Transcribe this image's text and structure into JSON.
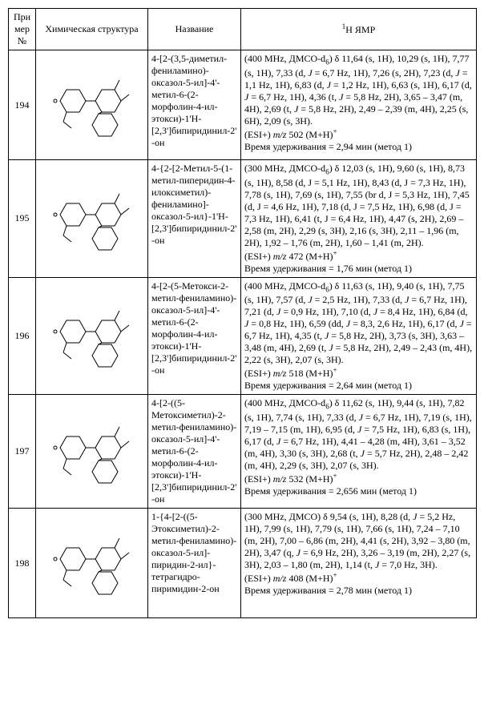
{
  "headers": {
    "col1": "При мер №",
    "col2": "Химическая структура",
    "col3": "Название",
    "col4_pre": "1",
    "col4_mid": "H ЯМР"
  },
  "rows": [
    {
      "num": "194",
      "name": "4-[2-(3,5-диметил-фениламино)-оксазол-5-ил]-4'-метил-6-(2-морфолин-4-ил-этокси)-1'H-[2,3']бипиридинил-2'-он",
      "nmr": "(400 MHz, ДМСО-d<sub>6</sub>) δ 11,64 (s, 1H), 10,29 (s, 1H), 7,77 (s, 1H), 7,33 (d, <i>J</i> = 6,7 Hz, 1H), 7,26 (s, 2H), 7,23 (d, <i>J</i> = 1,1 Hz, 1H), 6,83 (d, <i>J</i> = 1,2 Hz, 1H), 6,63 (s, 1H), 6,17 (d, <i>J</i> = 6,7 Hz, 1H), 4,36 (t, <i>J</i> = 5,8 Hz, 2H), 3,65 – 3,47 (m, 4H), 2,69 (t, <i>J</i> = 5,8 Hz, 2H), 2,49 – 2,39 (m, 4H), 2,25 (s, 6H), 2,09 (s, 3H).<br>(ESI+) <i>m/z</i> 502 (M+H)<sup>+</sup><br>Время удерживания = 2,94 мин (метод 1)"
    },
    {
      "num": "195",
      "name": "4-{2-[2-Метил-5-(1-метил-пиперидин-4-илоксиметил)-фениламино]-оксазол-5-ил}-1'H-[2,3']бипиридинил-2'-он",
      "nmr": "(300 MHz, ДМСО-d<sub>6</sub>) δ 12,03 (s, 1H), 9,60 (s, 1H), 8,73 (s, 1H), 8,58 (d, J = 5,1 Hz, 1H), 8,43 (d, J = 7,3 Hz, 1H), 7,78 (s, 1H), 7,69 (s, 1H), 7,55 (br d, J = 5,3 Hz, 1H), 7,45 (d, J = 4,6 Hz, 1H), 7,18 (d, J = 7,5 Hz, 1H), 6,98 (d, J = 7,3 Hz, 1H), 6,41 (t, J = 6,4 Hz, 1H), 4,47 (s, 2H), 2,69 – 2,58 (m, 2H), 2,29 (s, 3H), 2,16 (s, 3H), 2,11 – 1,96 (m, 2H), 1,92 – 1,76 (m, 2H), 1,60 – 1,41 (m, 2H).<br>(ESI+) <i>m/z</i> 472 (M+H)<sup>+</sup><br>Время удерживания = 1,76 мин (метод 1)"
    },
    {
      "num": "196",
      "name": "4-[2-(5-Метокси-2-метил-фениламино)-оксазол-5-ил]-4'-метил-6-(2-морфолин-4-ил-этокси)-1'H-[2,3']бипиридинил-2'-он",
      "nmr": "(400 MHz, ДМСО-d<sub>6</sub>) δ 11,63 (s, 1H), 9,40 (s, 1H), 7,75 (s, 1H), 7,57 (d, <i>J</i> = 2,5 Hz, 1H), 7,33 (d, <i>J</i> = 6,7 Hz, 1H), 7,21 (d, <i>J</i> = 0,9 Hz, 1H), 7,10 (d, <i>J</i> = 8,4 Hz, 1H), 6,84 (d, <i>J</i> = 0,8 Hz, 1H), 6,59 (dd, <i>J</i> = 8,3, 2,6 Hz, 1H), 6,17 (d, <i>J</i> = 6,7 Hz, 1H), 4,35 (t, <i>J</i> = 5,8 Hz, 2H), 3,73 (s, 3H), 3,63 – 3,48 (m, 4H), 2,69 (t, <i>J</i> = 5,8 Hz, 2H), 2,49 – 2,43 (m, 4H), 2,22 (s, 3H), 2,07 (s, 3H).<br>(ESI+) <i>m/z</i> 518 (M+H)<sup>+</sup><br>Время удерживания = 2,64 мин (метод 1)"
    },
    {
      "num": "197",
      "name": "4-[2-((5-Метоксиметил)-2-метил-фениламино)-оксазол-5-ил]-4'-метил-6-(2-морфолин-4-ил-этокси)-1'H-[2,3']бипиридинил-2'-он",
      "nmr": "(400 MHz, ДМСО-d<sub>6</sub>) δ 11,62 (s, 1H), 9,44 (s, 1H), 7,82 (s, 1H), 7,74 (s, 1H), 7,33 (d, <i>J</i> = 6,7 Hz, 1H), 7,19 (s, 1H), 7,19 – 7,15 (m, 1H), 6,95 (d, <i>J</i> = 7,5 Hz, 1H), 6,83 (s, 1H), 6,17 (d, <i>J</i> = 6,7 Hz, 1H), 4,41 – 4,28 (m, 4H), 3,61 – 3,52 (m, 4H), 3,30 (s, 3H), 2,68 (t, <i>J</i> = 5,7 Hz, 2H), 2,48 – 2,42 (m, 4H), 2,29 (s, 3H), 2,07 (s, 3H).<br>(ESI+) <i>m/z</i> 532 (M+H)<sup>+</sup><br>Время удерживания = 2,656 мин (метод 1)"
    },
    {
      "num": "198",
      "name": "1-{4-[2-((5-Этоксиметил)-2-метил-фениламино)-оксазол-5-ил]-пиридин-2-ил}-тетрагидро-пиримидин-2-он",
      "nmr": "(300 MHz, ДМСО) δ 9,54 (s, 1H), 8,28 (d, <i>J</i> = 5,2 Hz, 1H), 7,99 (s, 1H), 7,79 (s, 1H), 7,66 (s, 1H), 7,24 – 7,10 (m, 2H), 7,00 – 6,86 (m, 2H), 4,41 (s, 2H), 3,92 – 3,80 (m, 2H), 3,47 (q, <i>J</i> = 6,9 Hz, 2H), 3,26 – 3,19 (m, 2H), 2,27 (s, 3H), 2,03 – 1,80 (m, 2H), 1,14 (t, <i>J</i> = 7,0 Hz, 3H).<br>(ESI+) <i>m/z</i> 408 (M+H)<sup>+</sup><br>Время удерживания = 2,78 мин (метод 1)"
    }
  ]
}
